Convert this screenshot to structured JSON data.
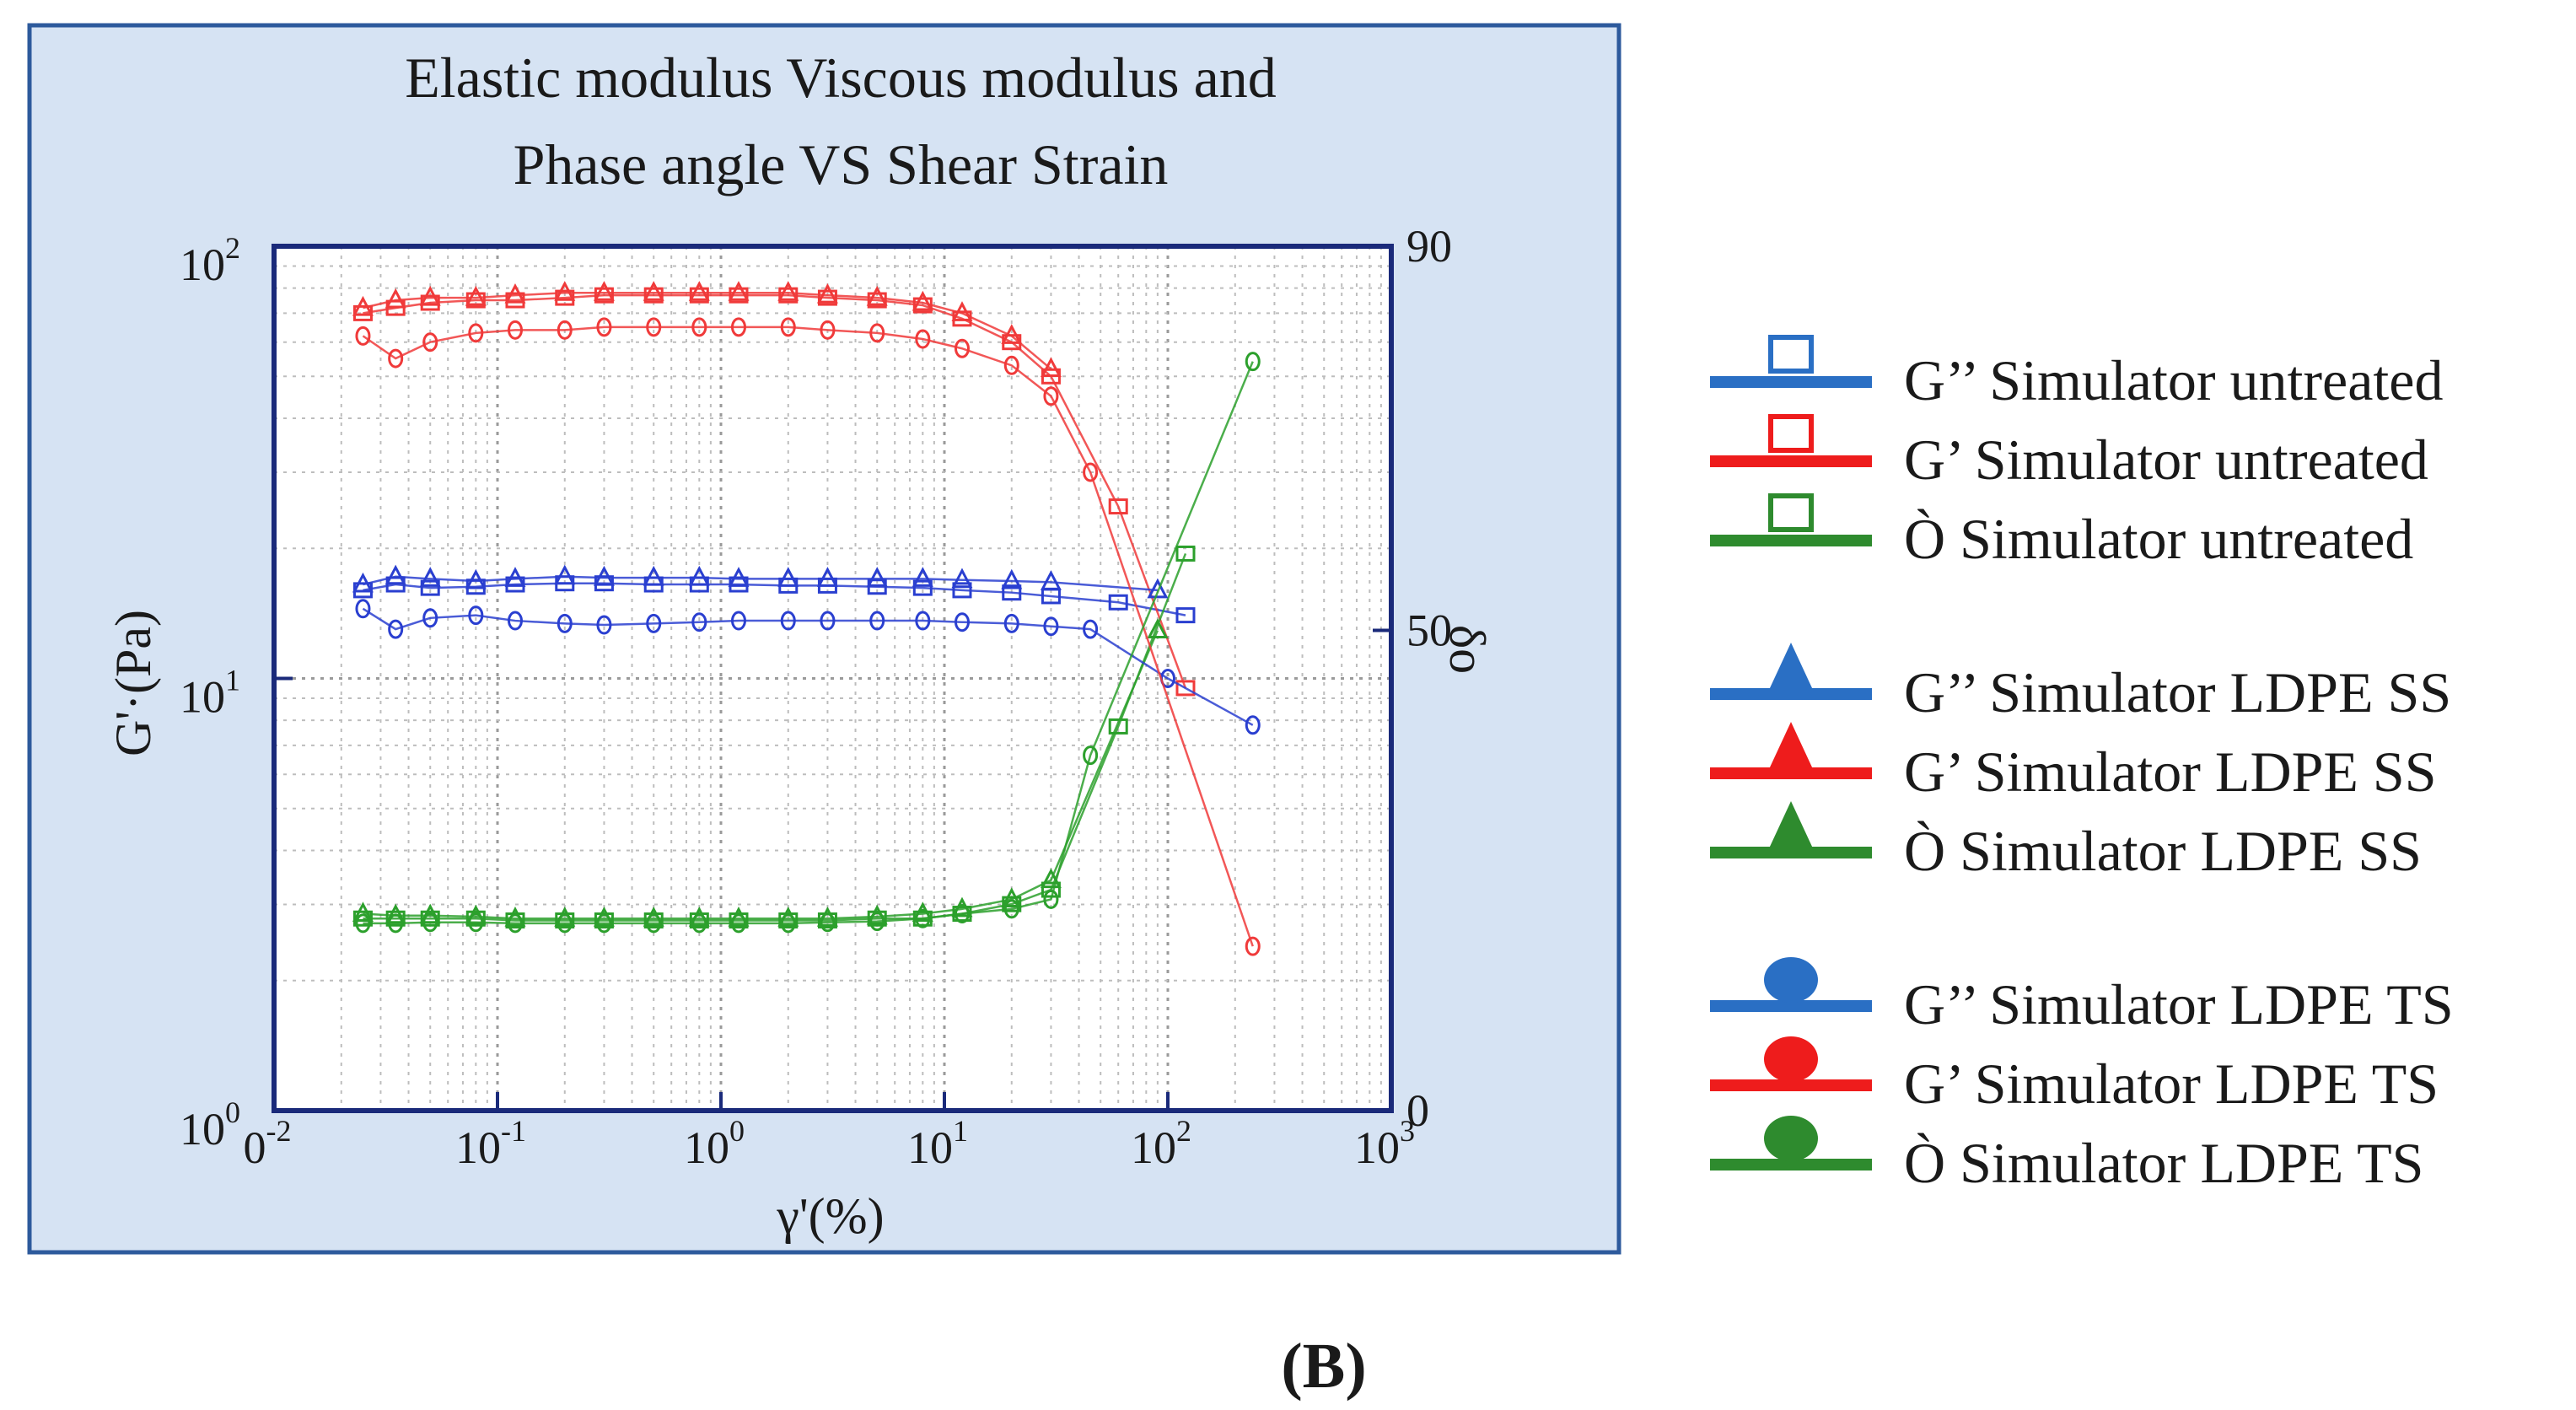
{
  "figure": {
    "panel_label": "(B)"
  },
  "chart_data": {
    "type": "line",
    "title": "Elastic modulus Viscous modulus and Phase angle VS Shear Strain",
    "title_lines": [
      "Elastic modulus Viscous modulus and",
      "Phase angle VS Shear Strain"
    ],
    "xlabel": "γ'(%)",
    "ylabel_left": "G'·(Pa)",
    "ylabel_right": "δo",
    "x_scale": "log",
    "y_left_scale": "log",
    "x_range": [
      0.01,
      1000
    ],
    "y_left_range": [
      1,
      100
    ],
    "y_right_range": [
      0,
      90
    ],
    "grid": true,
    "legend_placement": "right-outside",
    "background": "#d6e3f3",
    "x_ticks": [
      {
        "base": "0",
        "exp": "-2"
      },
      {
        "base": "10",
        "exp": "-1"
      },
      {
        "base": "10",
        "exp": "0"
      },
      {
        "base": "10",
        "exp": "1"
      },
      {
        "base": "10",
        "exp": "2"
      },
      {
        "base": "10",
        "exp": "3"
      }
    ],
    "y_left_ticks": [
      {
        "base": "10",
        "exp": "0",
        "value": 1
      },
      {
        "base": "10",
        "exp": "1",
        "value": 10
      },
      {
        "base": "10",
        "exp": "2",
        "value": 100
      }
    ],
    "y_right_ticks": [
      {
        "label": "0",
        "value": 0
      },
      {
        "label": "50",
        "value": 50
      },
      {
        "label": "90",
        "value": 90
      }
    ],
    "series": [
      {
        "name": "G'' Simulator untreated",
        "color": "#2a3fd0",
        "marker": "square",
        "axis": "left",
        "x": [
          0.025,
          0.035,
          0.05,
          0.08,
          0.12,
          0.2,
          0.3,
          0.5,
          0.8,
          1.2,
          2,
          3,
          5,
          8,
          12,
          20,
          30,
          60,
          120
        ],
        "y": [
          16,
          16.5,
          16.2,
          16.3,
          16.5,
          16.6,
          16.6,
          16.5,
          16.5,
          16.5,
          16.4,
          16.4,
          16.3,
          16.2,
          16.0,
          15.8,
          15.5,
          15.0,
          14.0
        ]
      },
      {
        "name": "G' Simulator untreated",
        "color": "#f03a3a",
        "marker": "square",
        "axis": "left",
        "x": [
          0.025,
          0.035,
          0.05,
          0.08,
          0.12,
          0.2,
          0.3,
          0.5,
          0.8,
          1.2,
          2,
          3,
          5,
          8,
          12,
          20,
          30,
          60,
          120
        ],
        "y": [
          70,
          72,
          74,
          75,
          75,
          76,
          77,
          77,
          77,
          77,
          77,
          76,
          75,
          73,
          68,
          60,
          50,
          25,
          9.5
        ]
      },
      {
        "name": "δ Simulator untreated",
        "color": "#2ca02c",
        "marker": "square",
        "axis": "right",
        "x": [
          0.025,
          0.035,
          0.05,
          0.08,
          0.12,
          0.2,
          0.3,
          0.5,
          0.8,
          1.2,
          2,
          3,
          5,
          8,
          12,
          20,
          30,
          60,
          120
        ],
        "y": [
          20,
          20,
          20,
          20,
          19.8,
          19.8,
          19.8,
          19.8,
          19.8,
          19.8,
          19.8,
          19.8,
          20,
          20,
          20.5,
          21.5,
          23,
          40,
          58
        ]
      },
      {
        "name": "G'' Simulator LDPE SS",
        "color": "#2a3fd0",
        "marker": "triangle",
        "axis": "left",
        "x": [
          0.025,
          0.035,
          0.05,
          0.08,
          0.12,
          0.2,
          0.3,
          0.5,
          0.8,
          1.2,
          2,
          3,
          5,
          8,
          12,
          20,
          30,
          90
        ],
        "y": [
          16.5,
          17.2,
          17,
          16.8,
          17,
          17.2,
          17.1,
          17.1,
          17.1,
          17,
          17,
          17,
          17,
          17,
          16.9,
          16.8,
          16.7,
          16.0
        ]
      },
      {
        "name": "G' Simulator LDPE SS",
        "color": "#f03a3a",
        "marker": "triangle",
        "axis": "left",
        "x": [
          0.025,
          0.035,
          0.05,
          0.08,
          0.12,
          0.2,
          0.3,
          0.5,
          0.8,
          1.2,
          2,
          3,
          5,
          8,
          12,
          20,
          30
        ],
        "y": [
          72,
          75,
          76,
          76,
          77,
          78,
          78,
          78,
          78,
          78,
          78,
          77,
          76,
          74,
          70,
          62,
          52
        ]
      },
      {
        "name": "δ Simulator LDPE SS",
        "color": "#2ca02c",
        "marker": "triangle",
        "axis": "right",
        "x": [
          0.025,
          0.035,
          0.05,
          0.08,
          0.12,
          0.2,
          0.3,
          0.5,
          0.8,
          1.2,
          2,
          3,
          5,
          8,
          12,
          20,
          30,
          90
        ],
        "y": [
          20.5,
          20.3,
          20.3,
          20.2,
          20,
          20,
          20,
          20,
          20,
          20,
          20,
          20,
          20.2,
          20.5,
          21,
          22,
          24,
          50
        ]
      },
      {
        "name": "G'' Simulator LDPE TS",
        "color": "#2a3fd0",
        "marker": "circle",
        "axis": "left",
        "x": [
          0.025,
          0.035,
          0.05,
          0.08,
          0.12,
          0.2,
          0.3,
          0.5,
          0.8,
          1.2,
          2,
          3,
          5,
          8,
          12,
          20,
          30,
          45,
          100,
          240
        ],
        "y": [
          14.5,
          13,
          13.8,
          14,
          13.6,
          13.4,
          13.3,
          13.4,
          13.5,
          13.6,
          13.6,
          13.6,
          13.6,
          13.6,
          13.5,
          13.4,
          13.2,
          13.0,
          10.0,
          7.8
        ]
      },
      {
        "name": "G' Simulator LDPE TS",
        "color": "#f03a3a",
        "marker": "circle",
        "axis": "left",
        "x": [
          0.025,
          0.035,
          0.05,
          0.08,
          0.12,
          0.2,
          0.3,
          0.5,
          0.8,
          1.2,
          2,
          3,
          5,
          8,
          12,
          20,
          30,
          45,
          240
        ],
        "y": [
          62,
          55,
          60,
          63,
          64,
          64,
          65,
          65,
          65,
          65,
          65,
          64,
          63,
          61,
          58,
          53,
          45,
          30,
          2.4
        ]
      },
      {
        "name": "δ Simulator LDPE TS",
        "color": "#2ca02c",
        "marker": "circle",
        "axis": "right",
        "x": [
          0.025,
          0.035,
          0.05,
          0.08,
          0.12,
          0.2,
          0.3,
          0.5,
          0.8,
          1.2,
          2,
          3,
          5,
          8,
          12,
          20,
          30,
          45,
          240
        ],
        "y": [
          19.5,
          19.5,
          19.6,
          19.6,
          19.5,
          19.5,
          19.5,
          19.5,
          19.5,
          19.5,
          19.5,
          19.6,
          19.7,
          20,
          20.5,
          21,
          22,
          37,
          78
        ]
      }
    ]
  },
  "legend": {
    "groups": [
      [
        {
          "label": "G’’ Simulator untreated",
          "color": "#2a6fc4",
          "marker": "square"
        },
        {
          "label": "G’ Simulator untreated",
          "color": "#ee1c1c",
          "marker": "square"
        },
        {
          "label": "Ò Simulator untreated",
          "color": "#2e8b2e",
          "marker": "square"
        }
      ],
      [
        {
          "label": "G’’ Simulator LDPE SS",
          "color": "#2a6fc4",
          "marker": "triangle"
        },
        {
          "label": "G’ Simulator LDPE SS",
          "color": "#ee1c1c",
          "marker": "triangle"
        },
        {
          "label": "Ò Simulator LDPE SS",
          "color": "#2e8b2e",
          "marker": "triangle"
        }
      ],
      [
        {
          "label": "G’’ Simulator LDPE TS",
          "color": "#2a6fc4",
          "marker": "circle"
        },
        {
          "label": "G’ Simulator LDPE TS",
          "color": "#ee1c1c",
          "marker": "circle"
        },
        {
          "label": "Ò Simulator LDPE TS",
          "color": "#2e8b2e",
          "marker": "circle"
        }
      ]
    ]
  }
}
